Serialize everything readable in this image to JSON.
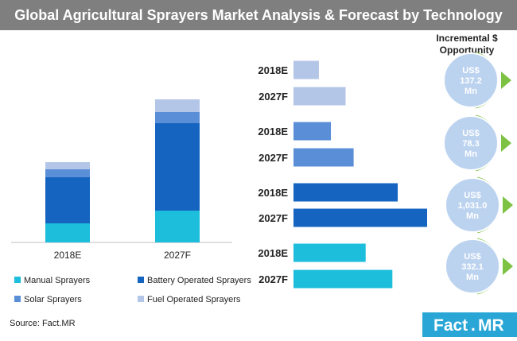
{
  "title": "Global Agricultural Sprayers Market Analysis & Forecast by Technology",
  "source": "Source: Fact.MR",
  "brand": {
    "part1": "Fact",
    "dot": ".",
    "part2": "MR"
  },
  "incremental_heading": [
    "Incremental $",
    "Opportunity"
  ],
  "colors": {
    "manual": "#1cbedc",
    "battery": "#1565c0",
    "solar": "#5a8fd8",
    "fuel": "#b4c6e7",
    "opportunity_circle": "#bcd3f0",
    "arrow": "#7dc242",
    "title_bg": "#7f7f7f",
    "brand_bg": "#2aa6d6"
  },
  "chart_data": [
    {
      "type": "bar",
      "stacked": true,
      "categories": [
        "2018E",
        "2027F"
      ],
      "series": [
        {
          "name": "Manual Sprayers",
          "color": "#1cbedc",
          "values": [
            24,
            40
          ]
        },
        {
          "name": "Battery Operated Sprayers",
          "color": "#1565c0",
          "values": [
            58,
            110
          ]
        },
        {
          "name": "Solar Sprayers",
          "color": "#5a8fd8",
          "values": [
            10,
            14
          ]
        },
        {
          "name": "Fuel Operated Sprayers",
          "color": "#b4c6e7",
          "values": [
            9,
            16
          ]
        }
      ],
      "legend_position": "bottom",
      "grid": false
    },
    {
      "type": "bar",
      "orientation": "horizontal",
      "xlim": [
        0,
        1000
      ],
      "groups": [
        {
          "series": "Fuel Operated Sprayers",
          "color": "#b4c6e7",
          "opportunity": [
            "US$",
            "137.2",
            "Mn"
          ],
          "bars": [
            {
              "label": "2018E",
              "value": 190
            },
            {
              "label": "2027F",
              "value": 390
            }
          ]
        },
        {
          "series": "Solar Sprayers",
          "color": "#5a8fd8",
          "opportunity": [
            "US$",
            "78.3",
            "Mn"
          ],
          "bars": [
            {
              "label": "2018E",
              "value": 280
            },
            {
              "label": "2027F",
              "value": 450
            }
          ]
        },
        {
          "series": "Battery Operated Sprayers",
          "color": "#1565c0",
          "opportunity": [
            "US$",
            "1,031.0",
            "Mn"
          ],
          "bars": [
            {
              "label": "2018E",
              "value": 780
            },
            {
              "label": "2027F",
              "value": 1000
            }
          ]
        },
        {
          "series": "Manual Sprayers",
          "color": "#1cbedc",
          "opportunity": [
            "US$",
            "332.1",
            "Mn"
          ],
          "bars": [
            {
              "label": "2018E",
              "value": 540
            },
            {
              "label": "2027F",
              "value": 740
            }
          ]
        }
      ]
    }
  ]
}
